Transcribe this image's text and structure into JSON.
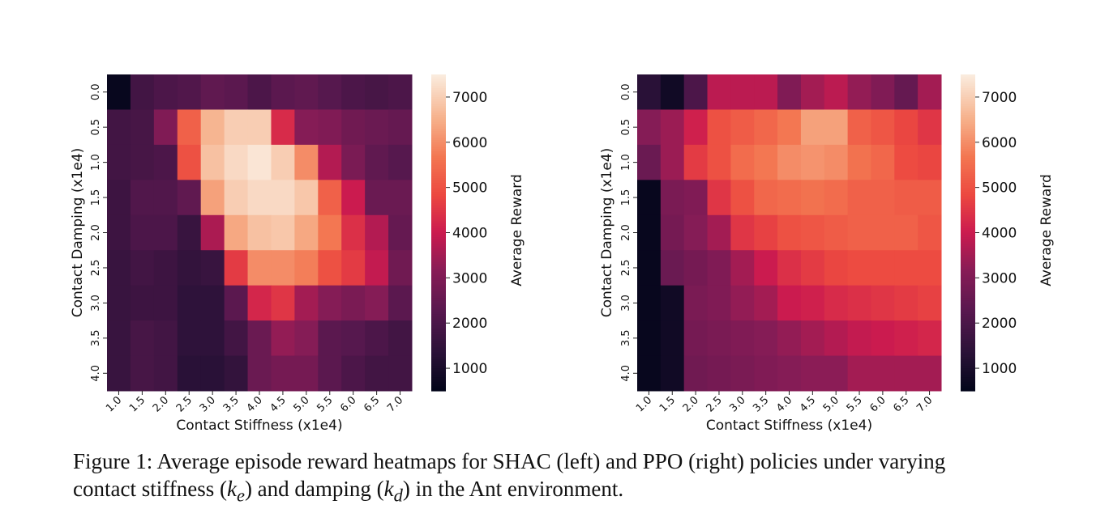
{
  "caption": {
    "prefix": "Figure 1:",
    "line1": "Average episode reward heatmaps for SHAC (left) and PPO (right) policies under varying",
    "line2_a": "contact stiffness (",
    "ke": "k",
    "ke_sub": "e",
    "line2_b": ") and damping (",
    "kd": "k",
    "kd_sub": "d",
    "line2_c": ") in the Ant environment."
  },
  "chart_data": [
    {
      "type": "heatmap",
      "xlabel": "Contact Stiffness (x1e4)",
      "ylabel": "Contact Damping (x1e4)",
      "colorbar_label": "Average Reward",
      "colorbar_ticks": [
        "1000",
        "2000",
        "3000",
        "4000",
        "5000",
        "6000",
        "7000"
      ],
      "vmin": 500,
      "vmax": 7500,
      "colormap": "rocket",
      "x_ticks": [
        "1.0",
        "1.5",
        "2.0",
        "2.5",
        "3.0",
        "3.5",
        "4.0",
        "4.5",
        "5.0",
        "5.5",
        "6.0",
        "6.5",
        "7.0"
      ],
      "y_ticks": [
        "0.0",
        "0.5",
        "1.0",
        "1.5",
        "2.0",
        "2.5",
        "3.0",
        "3.5",
        "4.0"
      ],
      "values": [
        [
          600,
          1800,
          2000,
          2100,
          2400,
          2300,
          2000,
          2300,
          2400,
          2200,
          2000,
          1900,
          2000
        ],
        [
          1800,
          1900,
          3000,
          5300,
          6600,
          7000,
          7000,
          4300,
          3100,
          3000,
          2700,
          2600,
          2500
        ],
        [
          1800,
          1900,
          2000,
          5000,
          6800,
          7200,
          7400,
          7000,
          6000,
          3700,
          2900,
          2400,
          2200
        ],
        [
          1700,
          2100,
          2100,
          2400,
          6300,
          7000,
          7200,
          7200,
          6900,
          5300,
          4000,
          2600,
          2600
        ],
        [
          1700,
          2000,
          2000,
          1600,
          3600,
          6400,
          6800,
          6900,
          6400,
          5700,
          4400,
          3700,
          2500
        ],
        [
          1600,
          1800,
          1700,
          1500,
          1600,
          4600,
          6000,
          6000,
          5800,
          5000,
          4600,
          3900,
          2700
        ],
        [
          1600,
          1700,
          1700,
          1400,
          1400,
          2300,
          4200,
          4500,
          3500,
          3100,
          2900,
          3100,
          2300
        ],
        [
          1600,
          1900,
          1800,
          1400,
          1400,
          1800,
          2600,
          3300,
          3100,
          2300,
          2200,
          2000,
          1800
        ],
        [
          1600,
          1900,
          1800,
          1300,
          1300,
          1500,
          2600,
          2800,
          2800,
          2300,
          2000,
          1800,
          1800
        ]
      ]
    },
    {
      "type": "heatmap",
      "xlabel": "Contact Stiffness (x1e4)",
      "ylabel": "Contact Damping (x1e4)",
      "colorbar_label": "Average Reward",
      "colorbar_ticks": [
        "1000",
        "2000",
        "3000",
        "4000",
        "5000",
        "6000",
        "7000"
      ],
      "vmin": 500,
      "vmax": 7500,
      "colormap": "rocket",
      "x_ticks": [
        "1.0",
        "1.5",
        "2.0",
        "2.5",
        "3.0",
        "3.5",
        "4.0",
        "4.5",
        "5.0",
        "5.5",
        "6.0",
        "6.5",
        "7.0"
      ],
      "y_ticks": [
        "0.0",
        "0.5",
        "1.0",
        "1.5",
        "2.0",
        "2.5",
        "3.0",
        "3.5",
        "4.0"
      ],
      "values": [
        [
          1300,
          800,
          2000,
          3800,
          3800,
          3800,
          3000,
          3500,
          3800,
          3300,
          3000,
          2500,
          3500
        ],
        [
          3100,
          3400,
          4100,
          5000,
          5200,
          5400,
          5700,
          6300,
          6300,
          5300,
          5100,
          4800,
          4500
        ],
        [
          2600,
          3400,
          4600,
          5000,
          5500,
          5700,
          6000,
          6100,
          6000,
          5600,
          5400,
          4900,
          4800
        ],
        [
          600,
          2900,
          3000,
          4500,
          5000,
          5400,
          5500,
          5600,
          5500,
          5300,
          5300,
          5200,
          5200
        ],
        [
          600,
          2800,
          3100,
          3500,
          4500,
          4700,
          5000,
          5100,
          5200,
          5300,
          5300,
          5300,
          5100
        ],
        [
          600,
          2600,
          2800,
          3000,
          3500,
          4000,
          4400,
          4600,
          4800,
          4900,
          4900,
          4900,
          4900
        ],
        [
          600,
          800,
          2900,
          3000,
          3300,
          3500,
          4000,
          4100,
          4300,
          4400,
          4500,
          4600,
          4700
        ],
        [
          600,
          800,
          2800,
          2900,
          3000,
          3100,
          3300,
          3500,
          3700,
          3900,
          4000,
          4100,
          4200
        ],
        [
          600,
          800,
          2700,
          2800,
          2900,
          3000,
          3100,
          3200,
          3200,
          3500,
          3500,
          3500,
          3500
        ]
      ]
    }
  ]
}
